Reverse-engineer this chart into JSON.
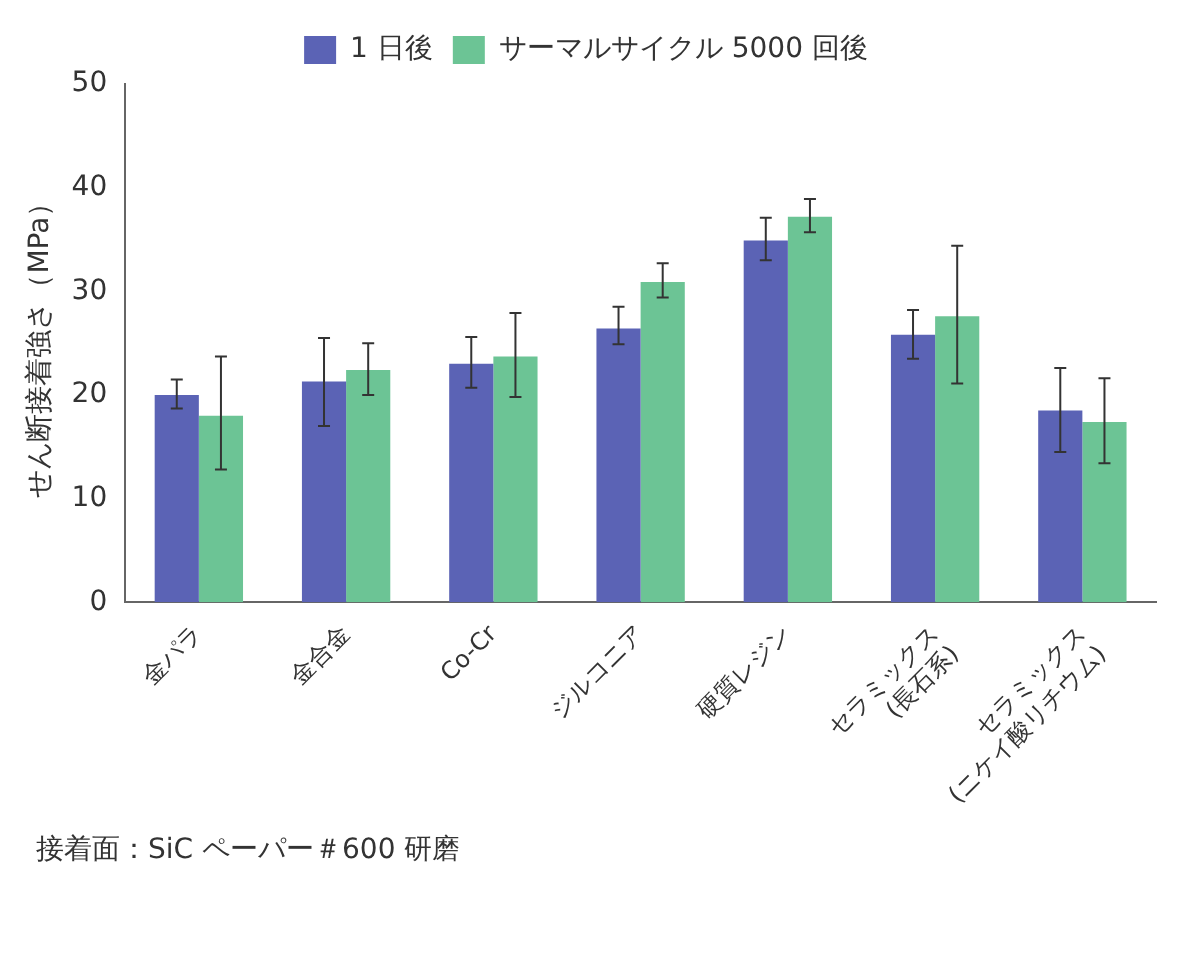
{
  "chart_data": {
    "type": "bar",
    "ylabel": "せん断接着強さ（MPa）",
    "categories": [
      "金パラ",
      "金合金",
      "Co-Cr",
      "ジルコニア",
      "硬質レジン",
      "セラミックス\n(長石系)",
      "セラミックス\n(ニケイ酸リチウム)"
    ],
    "series": [
      {
        "name": "1 日後",
        "color": "#5b63b5",
        "values": [
          20.0,
          21.3,
          23.0,
          26.4,
          34.9,
          25.8,
          18.5
        ],
        "errors": [
          [
            18.7,
            21.5
          ],
          [
            17.0,
            25.5
          ],
          [
            20.7,
            25.6
          ],
          [
            24.9,
            28.5
          ],
          [
            33.0,
            37.1
          ],
          [
            23.5,
            28.2
          ],
          [
            14.5,
            22.6
          ]
        ]
      },
      {
        "name": "サーマルサイクル 5000 回後",
        "color": "#6cc495",
        "values": [
          18.0,
          22.4,
          23.7,
          30.9,
          37.2,
          27.6,
          17.4
        ],
        "errors": [
          [
            12.8,
            23.7
          ],
          [
            20.0,
            25.0
          ],
          [
            19.8,
            27.9
          ],
          [
            29.4,
            32.7
          ],
          [
            35.7,
            38.9
          ],
          [
            21.1,
            34.4
          ],
          [
            13.4,
            21.6
          ]
        ]
      }
    ],
    "ylim": [
      0,
      50
    ],
    "yticks": [
      0,
      10,
      20,
      30,
      40,
      50
    ],
    "grid": false,
    "legend": "top",
    "annotations": [
      "接着面：SiC ペーパー＃600 研磨"
    ]
  }
}
